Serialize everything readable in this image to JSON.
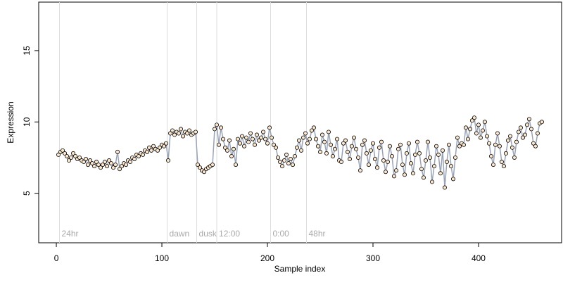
{
  "chart_data": {
    "type": "scatter",
    "xlabel": "Sample index",
    "ylabel": "Expression",
    "xlim": [
      -16.7,
      478.7
    ],
    "ylim": [
      1.53,
      18.4
    ],
    "xticks": [
      0,
      100,
      200,
      300,
      400
    ],
    "yticks": [
      5,
      10,
      15
    ],
    "line_color": "#9aa3b5",
    "point_color": "#000000",
    "annotation_color": "#aaaaaa",
    "annotation_line_color": "#dddddd",
    "annotations": [
      {
        "x": 3,
        "label": "24hr"
      },
      {
        "x": 105,
        "label": "dawn"
      },
      {
        "x": 133,
        "label": "dusk"
      },
      {
        "x": 152,
        "label": "12:00"
      },
      {
        "x": 203,
        "label": "0:00"
      },
      {
        "x": 237,
        "label": "48hr"
      }
    ],
    "x": [
      2,
      4,
      6,
      8,
      10,
      12,
      14,
      16,
      18,
      20,
      22,
      24,
      26,
      28,
      30,
      32,
      34,
      36,
      38,
      40,
      42,
      44,
      46,
      48,
      50,
      52,
      54,
      56,
      58,
      60,
      62,
      64,
      66,
      68,
      70,
      72,
      74,
      76,
      78,
      80,
      82,
      84,
      86,
      88,
      90,
      92,
      94,
      96,
      98,
      100,
      102,
      104,
      106,
      108,
      110,
      112,
      114,
      116,
      118,
      120,
      122,
      124,
      126,
      128,
      130,
      132,
      134,
      136,
      138,
      140,
      142,
      144,
      146,
      148,
      150,
      152,
      154,
      156,
      158,
      160,
      162,
      164,
      166,
      168,
      170,
      172,
      174,
      176,
      178,
      180,
      182,
      184,
      186,
      188,
      190,
      192,
      194,
      196,
      198,
      200,
      202,
      204,
      206,
      208,
      210,
      212,
      214,
      216,
      218,
      220,
      222,
      224,
      226,
      228,
      230,
      232,
      234,
      236,
      238,
      240,
      242,
      244,
      246,
      248,
      250,
      252,
      254,
      256,
      258,
      260,
      262,
      264,
      266,
      268,
      270,
      272,
      274,
      276,
      278,
      280,
      282,
      284,
      286,
      288,
      290,
      292,
      294,
      296,
      298,
      300,
      302,
      304,
      306,
      308,
      310,
      312,
      314,
      316,
      318,
      320,
      322,
      324,
      326,
      328,
      330,
      332,
      334,
      336,
      338,
      340,
      342,
      344,
      346,
      348,
      350,
      352,
      354,
      356,
      358,
      360,
      362,
      364,
      366,
      368,
      370,
      372,
      374,
      376,
      378,
      380,
      382,
      384,
      386,
      388,
      390,
      392,
      394,
      396,
      398,
      400,
      402,
      404,
      406,
      408,
      410,
      412,
      414,
      416,
      418,
      420,
      422,
      424,
      426,
      428,
      430,
      432,
      434,
      436,
      438,
      440,
      442,
      444,
      446,
      448,
      450,
      452,
      454,
      456,
      458,
      460
    ],
    "series": [
      {
        "values": [
          7.7,
          7.9,
          8.0,
          7.8,
          7.6,
          7.3,
          7.5,
          7.8,
          7.6,
          7.4,
          7.5,
          7.3,
          7.2,
          7.4,
          7.0,
          7.3,
          7.1,
          6.9,
          7.2,
          7.0,
          6.8,
          7.0,
          7.2,
          6.9,
          7.3,
          7.1,
          6.8,
          7.0,
          7.9,
          6.7,
          6.9,
          7.1,
          7.0,
          7.3,
          7.2,
          7.5,
          7.4,
          7.7,
          7.6,
          7.8,
          7.7,
          8.0,
          7.9,
          8.2,
          8.0,
          8.3,
          8.1,
          8.0,
          8.2,
          8.4,
          8.3,
          8.5,
          7.3,
          9.2,
          9.4,
          9.1,
          9.3,
          9.2,
          9.5,
          9.0,
          9.3,
          9.2,
          9.4,
          9.1,
          9.2,
          9.3,
          7.0,
          6.8,
          6.6,
          6.5,
          6.7,
          6.8,
          6.9,
          7.0,
          9.5,
          9.8,
          8.4,
          9.6,
          8.8,
          8.2,
          8.0,
          8.7,
          7.6,
          8.1,
          7.0,
          8.8,
          8.5,
          9.0,
          8.3,
          8.9,
          8.6,
          9.2,
          8.8,
          8.4,
          9.1,
          8.7,
          8.9,
          9.3,
          8.8,
          8.5,
          9.6,
          8.9,
          8.4,
          8.2,
          7.5,
          7.2,
          6.9,
          7.3,
          7.7,
          7.1,
          7.4,
          7.0,
          7.6,
          8.2,
          8.7,
          8.0,
          8.9,
          9.2,
          8.5,
          8.8,
          9.4,
          9.6,
          8.8,
          8.3,
          7.9,
          9.1,
          8.6,
          7.8,
          9.3,
          8.4,
          7.6,
          8.1,
          8.8,
          7.3,
          7.2,
          8.5,
          8.7,
          7.9,
          7.4,
          8.3,
          8.9,
          8.1,
          7.5,
          6.6,
          8.4,
          8.7,
          7.8,
          7.0,
          8.0,
          8.5,
          7.4,
          6.8,
          8.2,
          8.6,
          7.3,
          6.5,
          7.2,
          8.3,
          7.6,
          6.2,
          6.6,
          8.1,
          8.4,
          7.0,
          6.3,
          7.8,
          8.5,
          7.1,
          6.4,
          7.7,
          8.6,
          7.8,
          6.7,
          6.1,
          7.3,
          8.6,
          7.5,
          5.8,
          6.9,
          8.3,
          7.7,
          6.4,
          8.0,
          5.4,
          7.2,
          8.4,
          6.9,
          6.0,
          7.5,
          8.9,
          8.3,
          8.5,
          8.4,
          9.6,
          8.8,
          9.5,
          10.1,
          10.3,
          9.2,
          9.8,
          8.9,
          9.4,
          10.0,
          9.0,
          8.5,
          7.6,
          7.0,
          8.4,
          9.2,
          8.3,
          7.2,
          6.9,
          7.8,
          8.7,
          9.0,
          8.2,
          7.5,
          8.6,
          9.3,
          9.6,
          8.9,
          9.1,
          9.8,
          10.2,
          9.5,
          8.5,
          8.3,
          9.2,
          9.9,
          10.0
        ]
      }
    ]
  }
}
